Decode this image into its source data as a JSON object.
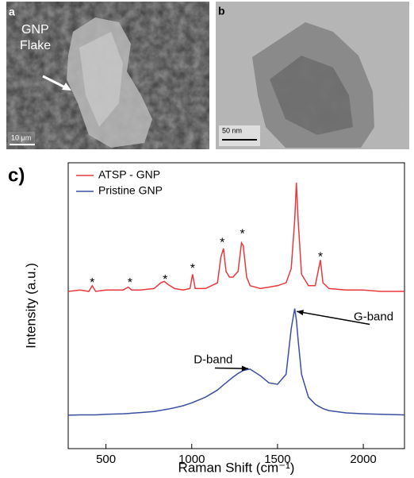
{
  "panels": [
    {
      "label": "a",
      "annotation": [
        "GNP",
        "Flake"
      ],
      "scale_bar": "10 μm"
    },
    {
      "label": "b",
      "scale_bar": "50 nm"
    }
  ],
  "chart_data": {
    "type": "line",
    "panel_label": "c)",
    "x_label": "Raman Shift (cm⁻¹)",
    "y_label": "Intensity (a.u.)",
    "x": [
      280,
      350,
      400,
      420,
      440,
      500,
      600,
      630,
      650,
      700,
      780,
      820,
      840,
      860,
      900,
      950,
      990,
      1005,
      1020,
      1080,
      1150,
      1170,
      1185,
      1200,
      1220,
      1240,
      1270,
      1290,
      1300,
      1320,
      1340,
      1400,
      1450,
      1500,
      1550,
      1580,
      1600,
      1610,
      1620,
      1640,
      1680,
      1720,
      1740,
      1750,
      1765,
      1800,
      1900,
      2000,
      2100,
      2240
    ],
    "series": [
      {
        "name": "ATSP - GNP",
        "color": "#e8383b",
        "values": [
          55,
          55.5,
          55,
          57,
          55,
          55.5,
          55.5,
          56.5,
          55.5,
          55.5,
          56,
          58,
          58.5,
          57.5,
          56,
          55.5,
          56,
          61,
          56,
          56,
          58,
          67,
          70,
          62,
          60,
          60,
          62,
          72,
          71,
          60,
          57,
          56,
          56.5,
          57,
          58,
          63,
          80,
          93,
          80,
          61,
          57,
          57,
          63,
          66,
          58,
          56,
          55.5,
          55.5,
          55,
          55
        ]
      },
      {
        "name": "Pristine GNP",
        "color": "#3a4fa0",
        "values": [
          11.7,
          11.8,
          11.8,
          11.8,
          11.8,
          12,
          12.2,
          12.3,
          12.4,
          12.6,
          13,
          13.4,
          13.6,
          13.8,
          14.3,
          15,
          15.8,
          16.1,
          16.5,
          18,
          20.5,
          21.5,
          22.3,
          23,
          24,
          25,
          26.3,
          27,
          27.3,
          27.6,
          27.8,
          25.5,
          23,
          22.5,
          26,
          42,
          49,
          45,
          38,
          26,
          18,
          15.5,
          14.8,
          14.5,
          14,
          13.3,
          12.5,
          12.2,
          12,
          11.8
        ]
      }
    ],
    "annotations": [
      {
        "text": "*",
        "x": 420,
        "y": 59
      },
      {
        "text": "*",
        "x": 640,
        "y": 59
      },
      {
        "text": "*",
        "x": 845,
        "y": 60
      },
      {
        "text": "*",
        "x": 1005,
        "y": 64
      },
      {
        "text": "*",
        "x": 1178,
        "y": 73
      },
      {
        "text": "*",
        "x": 1295,
        "y": 76
      },
      {
        "text": "*",
        "x": 1750,
        "y": 68
      },
      {
        "text": "D-band",
        "x": 1125,
        "y": 31,
        "arrow_x": 1330,
        "arrow_y": 28
      },
      {
        "text": "G-band",
        "x": 2060,
        "y": 46,
        "arrow_x": 1612,
        "arrow_y": 48
      }
    ],
    "xlim": [
      280,
      2240
    ],
    "ylim": [
      0,
      100
    ],
    "xticks": [
      500,
      1000,
      1500,
      2000
    ],
    "legend": "upper left"
  }
}
